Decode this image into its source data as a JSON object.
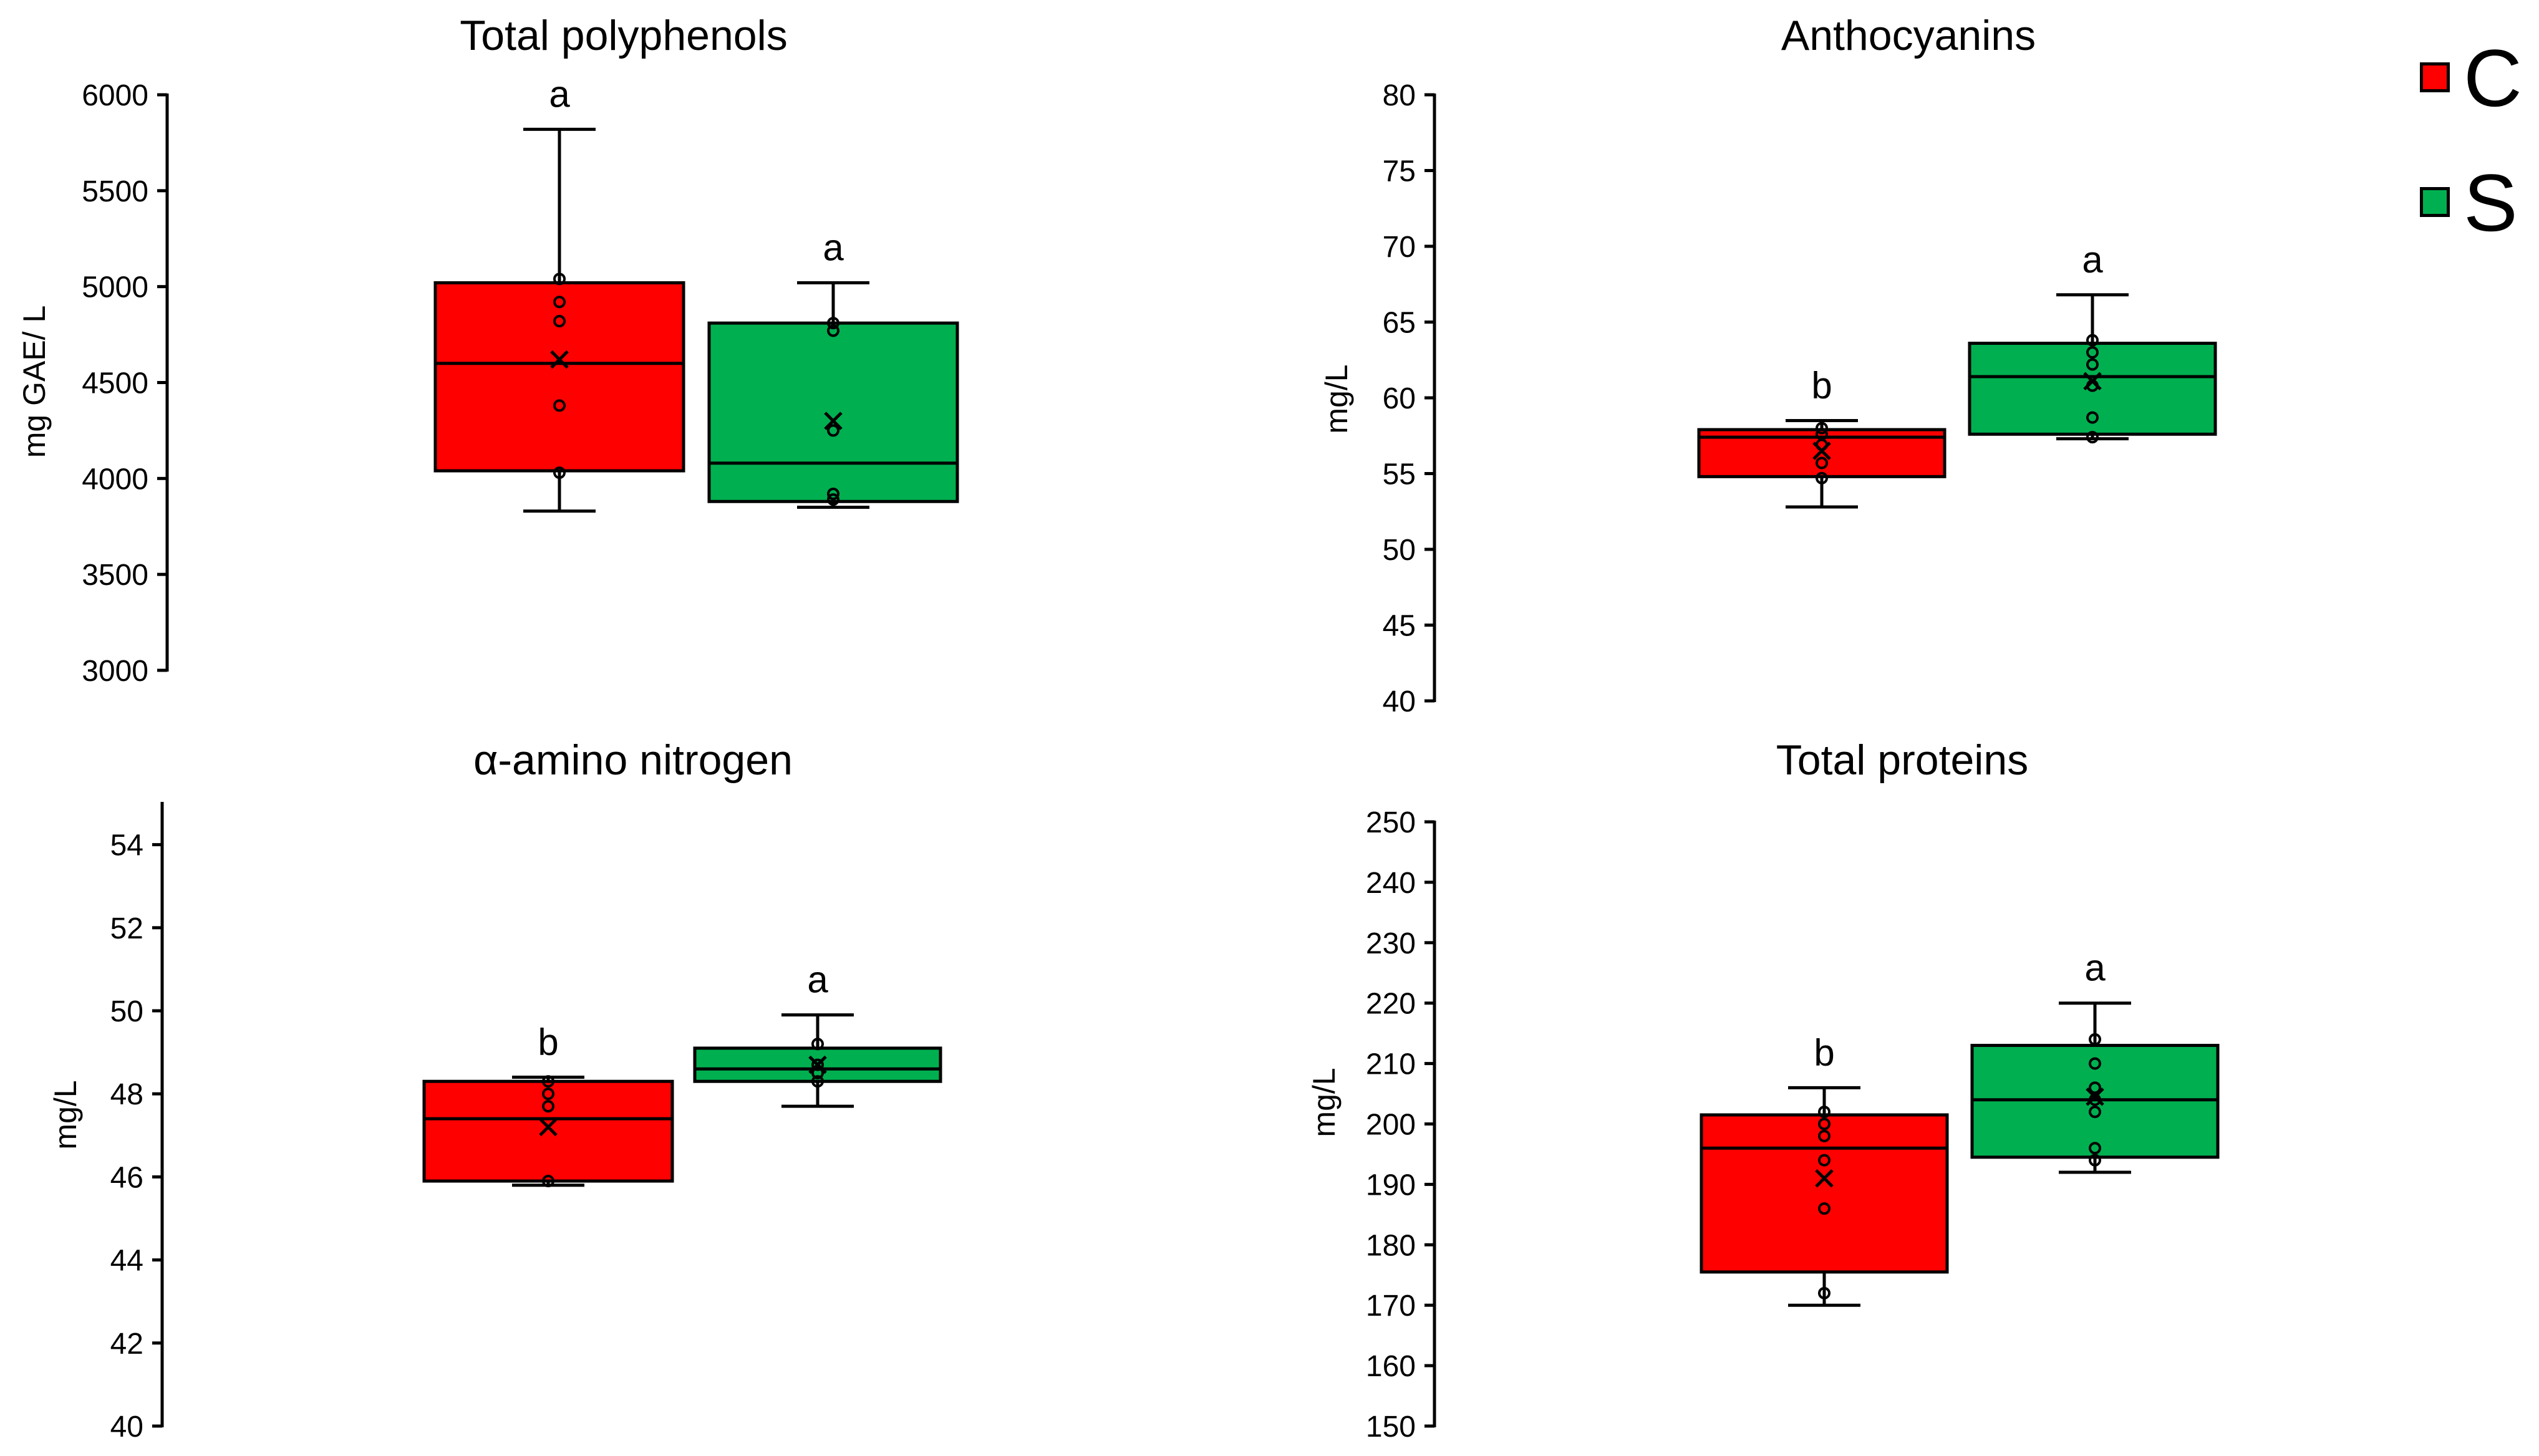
{
  "colors": {
    "C": "#ff0000",
    "S": "#00b050",
    "stroke": "#000000"
  },
  "legend": {
    "items": [
      {
        "label": "C",
        "color": "#ff0000"
      },
      {
        "label": "S",
        "color": "#00b050"
      }
    ]
  },
  "chart_data": [
    {
      "type": "box",
      "title": "Total polyphenols",
      "ylabel": "mg GAE/ L",
      "ylim": [
        3000,
        6000
      ],
      "yticks": [
        3000,
        3500,
        4000,
        4500,
        5000,
        5500,
        6000
      ],
      "series": [
        {
          "name": "C",
          "min": 3830,
          "q1": 4040,
          "median": 4600,
          "q3": 5020,
          "max": 5820,
          "mean": 4620,
          "points": [
            4030,
            4380,
            4820,
            4920,
            5040
          ],
          "letter": "a"
        },
        {
          "name": "S",
          "min": 3850,
          "q1": 3880,
          "median": 4080,
          "q3": 4810,
          "max": 5020,
          "mean": 4300,
          "points": [
            3890,
            3920,
            4250,
            4770,
            4810
          ],
          "letter": "a"
        }
      ]
    },
    {
      "type": "box",
      "title": "Anthocyanins",
      "ylabel": "mg/L",
      "ylim": [
        40,
        80
      ],
      "yticks": [
        40,
        45,
        50,
        55,
        60,
        65,
        70,
        75,
        80
      ],
      "series": [
        {
          "name": "C",
          "min": 52.8,
          "q1": 54.8,
          "median": 57.4,
          "q3": 57.9,
          "max": 58.5,
          "mean": 56.5,
          "points": [
            54.7,
            55.7,
            56.9,
            57.6,
            58.0
          ],
          "letter": "b"
        },
        {
          "name": "S",
          "min": 57.3,
          "q1": 57.6,
          "median": 61.4,
          "q3": 63.6,
          "max": 66.8,
          "mean": 61.1,
          "points": [
            57.4,
            58.7,
            60.8,
            62.2,
            63.0,
            63.8
          ],
          "letter": "a"
        }
      ]
    },
    {
      "type": "box",
      "title": "α-amino nitrogen",
      "ylabel": "mg/L",
      "ylim": [
        40,
        55
      ],
      "yticks": [
        40,
        42,
        44,
        46,
        48,
        50,
        52,
        54
      ],
      "series": [
        {
          "name": "C",
          "min": 45.8,
          "q1": 45.9,
          "median": 47.4,
          "q3": 48.3,
          "max": 48.4,
          "mean": 47.2,
          "points": [
            45.9,
            47.7,
            48.0,
            48.3
          ],
          "letter": "b"
        },
        {
          "name": "S",
          "min": 47.7,
          "q1": 48.3,
          "median": 48.6,
          "q3": 49.1,
          "max": 49.9,
          "mean": 48.7,
          "points": [
            48.3,
            48.5,
            48.7,
            49.2
          ],
          "letter": "a"
        }
      ]
    },
    {
      "type": "box",
      "title": "Total proteins",
      "ylabel": "mg/L",
      "ylim": [
        150,
        250
      ],
      "yticks": [
        150,
        160,
        170,
        180,
        190,
        200,
        210,
        220,
        230,
        240,
        250
      ],
      "series": [
        {
          "name": "C",
          "min": 170,
          "q1": 175.5,
          "median": 196,
          "q3": 201.5,
          "max": 206,
          "mean": 191,
          "points": [
            172,
            186,
            194,
            198,
            200,
            202
          ],
          "letter": "b"
        },
        {
          "name": "S",
          "min": 192,
          "q1": 194.5,
          "median": 204,
          "q3": 213,
          "max": 220,
          "mean": 204.5,
          "points": [
            194,
            196,
            202,
            204,
            206,
            210,
            214
          ],
          "letter": "a"
        }
      ]
    }
  ]
}
